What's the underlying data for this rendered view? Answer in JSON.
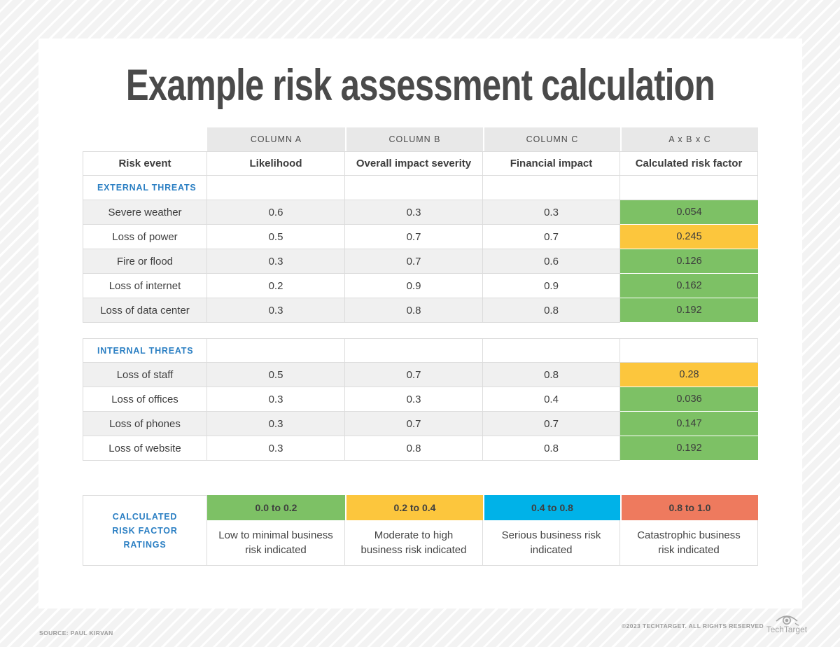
{
  "title": "Example risk assessment calculation",
  "colors": {
    "green": "#7dc165",
    "yellow": "#fcc63d",
    "blue": "#00b2e8",
    "salmon": "#ee7a5e",
    "accent_blue": "#2b7fc3"
  },
  "table": {
    "column_headers": [
      "COLUMN A",
      "COLUMN B",
      "COLUMN C",
      "A x B x C"
    ],
    "field_headers": [
      "Risk event",
      "Likelihood",
      "Overall impact severity",
      "Financial impact",
      "Calculated risk factor"
    ],
    "sections": [
      {
        "label": "EXTERNAL THREATS",
        "rows": [
          {
            "event": "Severe weather",
            "likelihood": "0.6",
            "impact": "0.3",
            "financial": "0.3",
            "risk": "0.054",
            "risk_color": "green"
          },
          {
            "event": "Loss of power",
            "likelihood": "0.5",
            "impact": "0.7",
            "financial": "0.7",
            "risk": "0.245",
            "risk_color": "yellow"
          },
          {
            "event": "Fire or flood",
            "likelihood": "0.3",
            "impact": "0.7",
            "financial": "0.6",
            "risk": "0.126",
            "risk_color": "green"
          },
          {
            "event": "Loss of internet",
            "likelihood": "0.2",
            "impact": "0.9",
            "financial": "0.9",
            "risk": "0.162",
            "risk_color": "green"
          },
          {
            "event": "Loss of data center",
            "likelihood": "0.3",
            "impact": "0.8",
            "financial": "0.8",
            "risk": "0.192",
            "risk_color": "green"
          }
        ]
      },
      {
        "label": "INTERNAL THREATS",
        "rows": [
          {
            "event": "Loss of staff",
            "likelihood": "0.5",
            "impact": "0.7",
            "financial": "0.8",
            "risk": "0.28",
            "risk_color": "yellow"
          },
          {
            "event": "Loss of offices",
            "likelihood": "0.3",
            "impact": "0.3",
            "financial": "0.4",
            "risk": "0.036",
            "risk_color": "green"
          },
          {
            "event": "Loss of phones",
            "likelihood": "0.3",
            "impact": "0.7",
            "financial": "0.7",
            "risk": "0.147",
            "risk_color": "green"
          },
          {
            "event": "Loss of website",
            "likelihood": "0.3",
            "impact": "0.8",
            "financial": "0.8",
            "risk": "0.192",
            "risk_color": "green"
          }
        ]
      }
    ]
  },
  "legend": {
    "label": "CALCULATED RISK FACTOR RATINGS",
    "bands": [
      {
        "range": "0.0 to 0.2",
        "color": "green",
        "description": "Low to minimal business risk indicated"
      },
      {
        "range": "0.2 to 0.4",
        "color": "yellow",
        "description": "Moderate to high business risk indicated"
      },
      {
        "range": "0.4 to 0.8",
        "color": "blue",
        "description": "Serious business risk indicated"
      },
      {
        "range": "0.8 to 1.0",
        "color": "salmon",
        "description": "Catastrophic business risk indicated"
      }
    ]
  },
  "footer": {
    "source": "SOURCE: PAUL KIRVAN",
    "copyright": "©2023 TECHTARGET. ALL RIGHTS RESERVED",
    "brand": "TechTarget"
  },
  "chart_data": {
    "type": "table",
    "title": "Example risk assessment calculation",
    "columns": [
      "Risk event",
      "Column A: Likelihood",
      "Column B: Overall impact severity",
      "Column C: Financial impact",
      "A x B x C: Calculated risk factor"
    ],
    "sections": [
      {
        "label": "EXTERNAL THREATS",
        "rows": [
          [
            "Severe weather",
            0.6,
            0.3,
            0.3,
            0.054
          ],
          [
            "Loss of power",
            0.5,
            0.7,
            0.7,
            0.245
          ],
          [
            "Fire or flood",
            0.3,
            0.7,
            0.6,
            0.126
          ],
          [
            "Loss of internet",
            0.2,
            0.9,
            0.9,
            0.162
          ],
          [
            "Loss of data center",
            0.3,
            0.8,
            0.8,
            0.192
          ]
        ]
      },
      {
        "label": "INTERNAL THREATS",
        "rows": [
          [
            "Loss of staff",
            0.5,
            0.7,
            0.8,
            0.28
          ],
          [
            "Loss of offices",
            0.3,
            0.3,
            0.4,
            0.036
          ],
          [
            "Loss of phones",
            0.3,
            0.7,
            0.7,
            0.147
          ],
          [
            "Loss of website",
            0.3,
            0.8,
            0.8,
            0.192
          ]
        ]
      }
    ],
    "risk_factor_ratings": [
      {
        "range": [
          0.0,
          0.2
        ],
        "color": "green",
        "meaning": "Low to minimal business risk indicated"
      },
      {
        "range": [
          0.2,
          0.4
        ],
        "color": "yellow",
        "meaning": "Moderate to high business risk indicated"
      },
      {
        "range": [
          0.4,
          0.8
        ],
        "color": "blue",
        "meaning": "Serious business risk indicated"
      },
      {
        "range": [
          0.8,
          1.0
        ],
        "color": "salmon",
        "meaning": "Catastrophic business risk indicated"
      }
    ]
  }
}
